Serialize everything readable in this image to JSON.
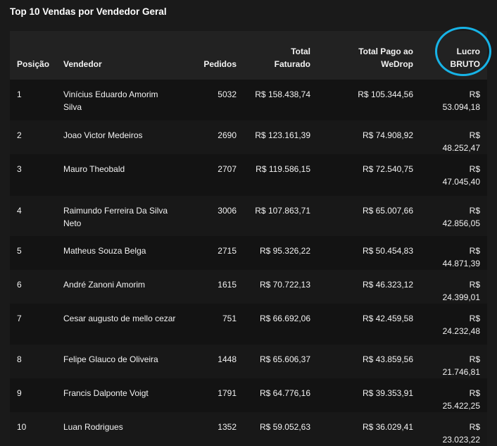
{
  "title": "Top 10 Vendas por Vendedor Geral",
  "accent_color": "#17b3e6",
  "columns": {
    "posicao": "Posição",
    "vendedor": "Vendedor",
    "pedidos": "Pedidos",
    "total_faturado": "Total Faturado",
    "total_pago": "Total Pago ao WeDrop",
    "lucro": "Lucro BRUTO"
  },
  "rows": [
    {
      "posicao": "1",
      "vendedor": "Vinícius Eduardo Amorim Silva",
      "pedidos": "5032",
      "total_faturado": "R$ 158.438,74",
      "total_pago": "R$ 105.344,56",
      "lucro": "R$ 53.094,18"
    },
    {
      "posicao": "2",
      "vendedor": "Joao Victor Medeiros",
      "pedidos": "2690",
      "total_faturado": "R$ 123.161,39",
      "total_pago": "R$ 74.908,92",
      "lucro": "R$ 48.252,47"
    },
    {
      "posicao": "3",
      "vendedor": "Mauro Theobald",
      "pedidos": "2707",
      "total_faturado": "R$ 119.586,15",
      "total_pago": "R$ 72.540,75",
      "lucro": "R$ 47.045,40"
    },
    {
      "posicao": "4",
      "vendedor": "Raimundo Ferreira Da Silva Neto",
      "pedidos": "3006",
      "total_faturado": "R$ 107.863,71",
      "total_pago": "R$ 65.007,66",
      "lucro": "R$ 42.856,05"
    },
    {
      "posicao": "5",
      "vendedor": "Matheus Souza Belga",
      "pedidos": "2715",
      "total_faturado": "R$ 95.326,22",
      "total_pago": "R$ 50.454,83",
      "lucro": "R$ 44.871,39"
    },
    {
      "posicao": "6",
      "vendedor": "André Zanoni Amorim",
      "pedidos": "1615",
      "total_faturado": "R$ 70.722,13",
      "total_pago": "R$ 46.323,12",
      "lucro": "R$ 24.399,01"
    },
    {
      "posicao": "7",
      "vendedor": "Cesar augusto de mello cezar",
      "pedidos": "751",
      "total_faturado": "R$ 66.692,06",
      "total_pago": "R$ 42.459,58",
      "lucro": "R$ 24.232,48"
    },
    {
      "posicao": "8",
      "vendedor": "Felipe Glauco de Oliveira",
      "pedidos": "1448",
      "total_faturado": "R$ 65.606,37",
      "total_pago": "R$ 43.859,56",
      "lucro": "R$ 21.746,81"
    },
    {
      "posicao": "9",
      "vendedor": "Francis Dalponte Voigt",
      "pedidos": "1791",
      "total_faturado": "R$ 64.776,16",
      "total_pago": "R$ 39.353,91",
      "lucro": "R$ 25.422,25"
    },
    {
      "posicao": "10",
      "vendedor": "Luan Rodrigues",
      "pedidos": "1352",
      "total_faturado": "R$ 59.052,63",
      "total_pago": "R$ 36.029,41",
      "lucro": "R$ 23.023,22"
    }
  ]
}
